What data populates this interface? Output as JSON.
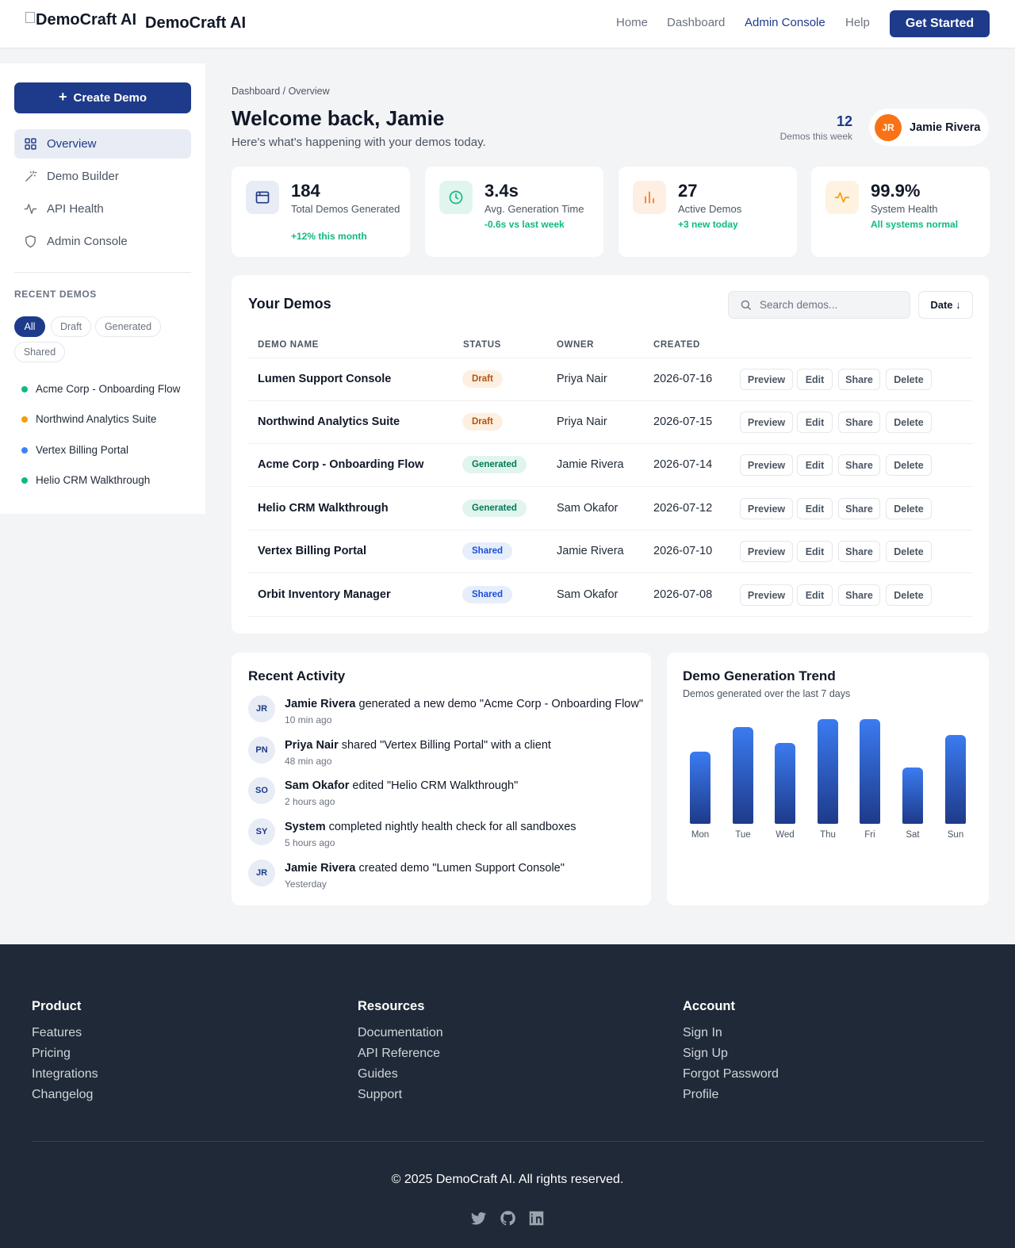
{
  "header": {
    "logo_alt": "DemoCraft AI",
    "brand": "DemoCraft AI",
    "nav": [
      "Home",
      "Dashboard",
      "Admin Console",
      "Help"
    ],
    "active_nav": "Admin Console",
    "cta": "Get Started"
  },
  "sidebar": {
    "create_label": "Create Demo",
    "items": [
      {
        "label": "Overview",
        "icon": "grid-icon",
        "active": true
      },
      {
        "label": "Demo Builder",
        "icon": "wand-icon"
      },
      {
        "label": "API Health",
        "icon": "pulse-icon"
      },
      {
        "label": "Admin Console",
        "icon": "shield-icon"
      }
    ],
    "recent_title": "RECENT DEMOS",
    "filters": [
      "All",
      "Draft",
      "Generated",
      "Shared"
    ],
    "active_filter": "All",
    "recent": [
      {
        "name": "Acme Corp - Onboarding Flow",
        "color": "#10b981"
      },
      {
        "name": "Northwind Analytics Suite",
        "color": "#f59e0b"
      },
      {
        "name": "Vertex Billing Portal",
        "color": "#3b82f6"
      },
      {
        "name": "Helio CRM Walkthrough",
        "color": "#10b981"
      }
    ]
  },
  "main": {
    "breadcrumb": "Dashboard / Overview",
    "welcome": "Welcome back, Jamie",
    "subtitle": "Here's what's happening with your demos today.",
    "week_count": "12",
    "week_label": "Demos this week",
    "user": {
      "initials": "JR",
      "name": "Jamie Rivera"
    }
  },
  "stats": [
    {
      "value": "184",
      "label": "Total Demos Generated",
      "change": "+12% this month",
      "icon": "window-icon",
      "bg": "#e8ecf4",
      "color": "#1e3a8a"
    },
    {
      "value": "3.4s",
      "label": "Avg. Generation Time",
      "change": "-0.6s vs last week",
      "icon": "clock-icon",
      "bg": "#e0f5ee",
      "color": "#10b981"
    },
    {
      "value": "27",
      "label": "Active Demos",
      "change": "+3 new today",
      "icon": "bar-chart-icon",
      "bg": "#fdefe3",
      "color": "#f97316"
    },
    {
      "value": "99.9%",
      "label": "System Health",
      "change": "All systems normal",
      "icon": "pulse-icon",
      "bg": "#fdf3e0",
      "color": "#f59e0b"
    }
  ],
  "demos": {
    "title": "Your Demos",
    "search_placeholder": "Search demos...",
    "sort_label": "Date ↓",
    "columns": [
      "DEMO NAME",
      "STATUS",
      "OWNER",
      "CREATED"
    ],
    "actions": [
      "Preview",
      "Edit",
      "Share",
      "Delete"
    ],
    "rows": [
      {
        "name": "Lumen Support Console",
        "status": "Draft",
        "owner": "Priya Nair",
        "created": "2026-07-16"
      },
      {
        "name": "Northwind Analytics Suite",
        "status": "Draft",
        "owner": "Priya Nair",
        "created": "2026-07-15"
      },
      {
        "name": "Acme Corp - Onboarding Flow",
        "status": "Generated",
        "owner": "Jamie Rivera",
        "created": "2026-07-14"
      },
      {
        "name": "Helio CRM Walkthrough",
        "status": "Generated",
        "owner": "Sam Okafor",
        "created": "2026-07-12"
      },
      {
        "name": "Vertex Billing Portal",
        "status": "Shared",
        "owner": "Jamie Rivera",
        "created": "2026-07-10"
      },
      {
        "name": "Orbit Inventory Manager",
        "status": "Shared",
        "owner": "Sam Okafor",
        "created": "2026-07-08"
      }
    ]
  },
  "activity": {
    "title": "Recent Activity",
    "items": [
      {
        "initials": "JR",
        "actor": "Jamie Rivera",
        "text": " generated a new demo \"Acme Corp - Onboarding Flow\"",
        "time": "10 min ago"
      },
      {
        "initials": "PN",
        "actor": "Priya Nair",
        "text": " shared \"Vertex Billing Portal\" with a client",
        "time": "48 min ago"
      },
      {
        "initials": "SO",
        "actor": "Sam Okafor",
        "text": " edited \"Helio CRM Walkthrough\"",
        "time": "2 hours ago"
      },
      {
        "initials": "SY",
        "actor": "System",
        "text": " completed nightly health check for all sandboxes",
        "time": "5 hours ago"
      },
      {
        "initials": "JR",
        "actor": "Jamie Rivera",
        "text": " created demo \"Lumen Support Console\"",
        "time": "Yesterday"
      }
    ]
  },
  "chart_data": {
    "type": "bar",
    "title": "Demo Generation Trend",
    "subtitle": "Demos generated over the last 7 days",
    "categories": [
      "Mon",
      "Tue",
      "Wed",
      "Thu",
      "Fri",
      "Sat",
      "Sun"
    ],
    "values": [
      9,
      12,
      10,
      13,
      13,
      7,
      11
    ],
    "ylim": [
      0,
      13
    ],
    "grid": false
  },
  "footer": {
    "columns": [
      {
        "title": "Product",
        "links": [
          "Features",
          "Pricing",
          "Integrations",
          "Changelog"
        ]
      },
      {
        "title": "Resources",
        "links": [
          "Documentation",
          "API Reference",
          "Guides",
          "Support"
        ]
      },
      {
        "title": "Account",
        "links": [
          "Sign In",
          "Sign Up",
          "Forgot Password",
          "Profile"
        ]
      }
    ],
    "copyright": "© 2025 DemoCraft AI. All rights reserved.",
    "social": [
      "twitter-icon",
      "github-icon",
      "linkedin-icon"
    ]
  }
}
